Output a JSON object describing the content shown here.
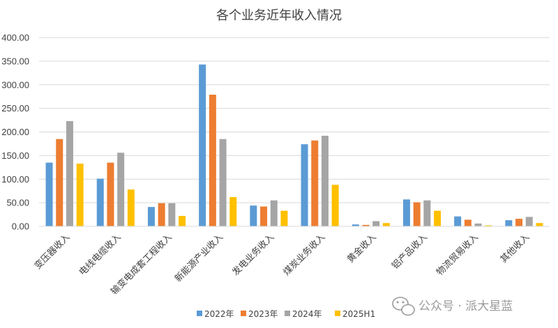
{
  "chart_data": {
    "type": "bar",
    "title": "各个业务近年收入情况",
    "xlabel": "",
    "ylabel": "",
    "ylim": [
      0,
      400
    ],
    "yticks": [
      "0.00",
      "50.00",
      "100.00",
      "150.00",
      "200.00",
      "250.00",
      "300.00",
      "350.00",
      "400.00"
    ],
    "grid": true,
    "legend_position": "bottom",
    "categories": [
      "变压器收入",
      "电线电缆收入",
      "输变电成套工程收入",
      "新能源产业收入",
      "发电业务收入",
      "煤炭业务收入",
      "黄金收入",
      "铝产品收入",
      "物流贸易收入",
      "其他收入"
    ],
    "series": [
      {
        "name": "2022年",
        "color": "#5B9BD5",
        "values": [
          135,
          101,
          41,
          343,
          44,
          174,
          4,
          57,
          21,
          13
        ]
      },
      {
        "name": "2023年",
        "color": "#ED7D31",
        "values": [
          185,
          135,
          49,
          279,
          42,
          182,
          3,
          51,
          14,
          16
        ]
      },
      {
        "name": "2024年",
        "color": "#A5A5A5",
        "values": [
          223,
          156,
          49,
          185,
          55,
          192,
          11,
          55,
          6,
          20
        ]
      },
      {
        "name": "2025H1",
        "color": "#FFC000",
        "values": [
          133,
          78,
          22,
          62,
          33,
          88,
          7,
          33,
          2,
          7
        ]
      }
    ]
  },
  "watermark": {
    "text": "公众号 · 派大星蓝",
    "icon": "wechat-icon"
  }
}
